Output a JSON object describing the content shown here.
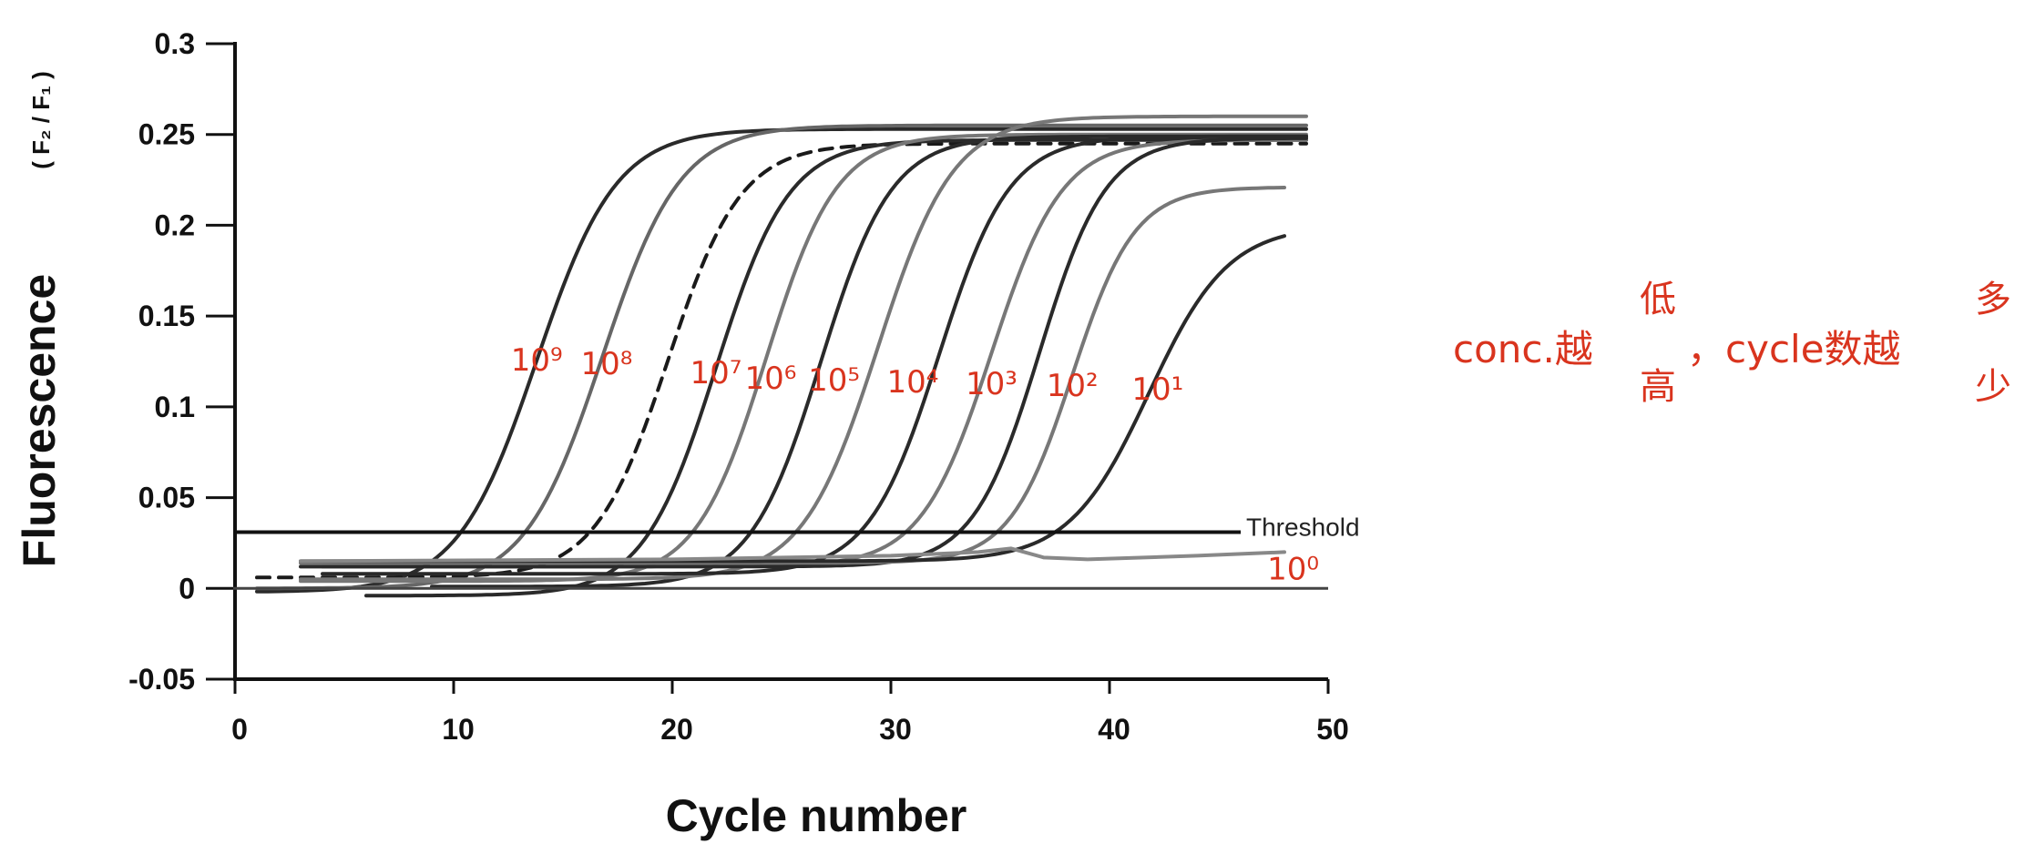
{
  "chart_data": {
    "type": "line",
    "title": "",
    "xlabel": "Cycle number",
    "ylabel": "Fluorescence",
    "ylabel_units": "( F₂ / F₁ )",
    "xlim": [
      0,
      50
    ],
    "ylim": [
      -0.05,
      0.3
    ],
    "x_ticks": [
      "0",
      "10",
      "20",
      "30",
      "40",
      "50"
    ],
    "y_ticks": [
      "-0.05",
      "0",
      "0.05",
      "0.1",
      "0.15",
      "0.2",
      "0.25",
      "0.3"
    ],
    "grid": false,
    "legend": "none",
    "threshold": {
      "label": "Threshold",
      "y": 0.031,
      "x_end": 46
    },
    "baseline": {
      "y": 0.0,
      "x_end": 50
    },
    "series": [
      {
        "label": "10⁹",
        "style": "solid",
        "color": "#2a2a2a",
        "x_start": 1,
        "x_end": 49,
        "baseline": -0.002,
        "plateau": 0.253,
        "midpoint": 13.8,
        "slope": 0.55
      },
      {
        "label": "10⁸",
        "style": "solid",
        "color": "#666666",
        "x_start": 1,
        "x_end": 49,
        "baseline": 0.0,
        "plateau": 0.255,
        "midpoint": 16.8,
        "slope": 0.56
      },
      {
        "label": "",
        "style": "dashed",
        "color": "#1a1a1a",
        "x_start": 1,
        "x_end": 49,
        "baseline": 0.006,
        "plateau": 0.245,
        "midpoint": 19.8,
        "slope": 0.6
      },
      {
        "label": "10⁷",
        "style": "solid",
        "color": "#2a2a2a",
        "x_start": 6,
        "x_end": 49,
        "baseline": -0.004,
        "plateau": 0.247,
        "midpoint": 22.0,
        "slope": 0.6
      },
      {
        "label": "10⁶",
        "style": "solid",
        "color": "#777777",
        "x_start": 3,
        "x_end": 49,
        "baseline": 0.004,
        "plateau": 0.25,
        "midpoint": 24.3,
        "slope": 0.62
      },
      {
        "label": "10⁵",
        "style": "solid",
        "color": "#2a2a2a",
        "x_start": 9,
        "x_end": 49,
        "baseline": 0.001,
        "plateau": 0.249,
        "midpoint": 26.8,
        "slope": 0.62
      },
      {
        "label": "10⁴",
        "style": "solid",
        "color": "#777777",
        "x_start": 3,
        "x_end": 49,
        "baseline": 0.005,
        "plateau": 0.26,
        "midpoint": 29.4,
        "slope": 0.58
      },
      {
        "label": "10³",
        "style": "solid",
        "color": "#2a2a2a",
        "x_start": 4,
        "x_end": 49,
        "baseline": 0.008,
        "plateau": 0.249,
        "midpoint": 32.2,
        "slope": 0.62
      },
      {
        "label": "10²",
        "style": "solid",
        "color": "#777777",
        "x_start": 4,
        "x_end": 49,
        "baseline": 0.012,
        "plateau": 0.247,
        "midpoint": 34.6,
        "slope": 0.62
      },
      {
        "label": "",
        "style": "solid",
        "color": "#2a2a2a",
        "x_start": 3,
        "x_end": 49,
        "baseline": 0.012,
        "plateau": 0.248,
        "midpoint": 36.8,
        "slope": 0.66
      },
      {
        "label": "",
        "style": "solid",
        "color": "#777777",
        "x_start": 3,
        "x_end": 48,
        "baseline": 0.014,
        "plateau": 0.221,
        "midpoint": 38.3,
        "slope": 0.7
      },
      {
        "label": "10¹",
        "style": "solid",
        "color": "#2a2a2a",
        "x_start": 3,
        "x_end": 48,
        "baseline": 0.015,
        "plateau": 0.2,
        "midpoint": 41.8,
        "slope": 0.55
      },
      {
        "label": "10⁰",
        "style": "solid",
        "color": "#888888",
        "x_start": 3,
        "x_end": 48,
        "points": [
          [
            3,
            0.015
          ],
          [
            20,
            0.016
          ],
          [
            30,
            0.018
          ],
          [
            34,
            0.02
          ],
          [
            35.5,
            0.022
          ],
          [
            37,
            0.017
          ],
          [
            39,
            0.016
          ],
          [
            44,
            0.018
          ],
          [
            48,
            0.02
          ]
        ]
      }
    ],
    "annotations": {
      "labels": [
        {
          "text": "10⁹",
          "x": 13.8,
          "y": 0.12
        },
        {
          "text": "10⁸",
          "x": 17.0,
          "y": 0.118
        },
        {
          "text": "10⁷",
          "x": 22.0,
          "y": 0.113
        },
        {
          "text": "10⁶",
          "x": 24.5,
          "y": 0.11
        },
        {
          "text": "10⁵",
          "x": 27.4,
          "y": 0.109
        },
        {
          "text": "10⁴",
          "x": 31.0,
          "y": 0.108
        },
        {
          "text": "10³",
          "x": 34.6,
          "y": 0.107
        },
        {
          "text": "10²",
          "x": 38.3,
          "y": 0.106
        },
        {
          "text": "10¹",
          "x": 42.2,
          "y": 0.104
        },
        {
          "text": "10⁰",
          "x": 48.4,
          "y": 0.005
        }
      ],
      "note": {
        "prefix": "conc.越",
        "prefix_stack": [
          "低",
          "高"
        ],
        "middle": "，cycle数越",
        "suffix_stack": [
          "多",
          "少"
        ]
      }
    }
  }
}
